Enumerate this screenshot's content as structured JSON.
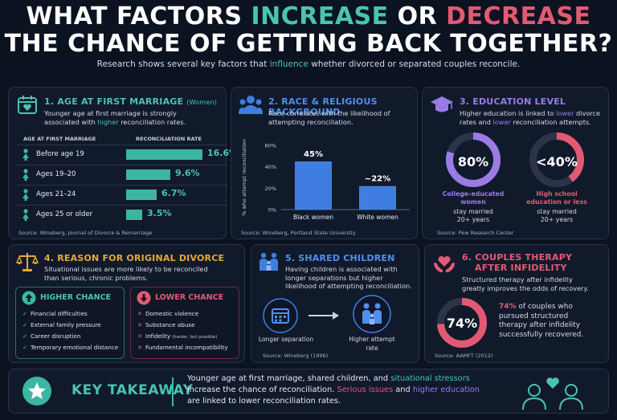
{
  "header": {
    "title_a": "WHAT FACTORS ",
    "title_b": "INCREASE",
    "title_c": " OR ",
    "title_d": "DECREASE",
    "title_line2": "THE CHANCE OF GETTING BACK TOGETHER?",
    "subtitle_a": "Research shows several key factors that ",
    "subtitle_b": "influence",
    "subtitle_c": " whether divorced or separated couples reconcile."
  },
  "colors": {
    "teal": "#49c4b0",
    "red": "#e25a72",
    "blue": "#3f7ee0",
    "purple": "#9b7be6",
    "orange": "#e7a73a",
    "background": "#0b1220"
  },
  "panel1": {
    "title": "1. AGE AT FIRST MARRIAGE",
    "title_note": "(Women)",
    "text_a": "Younger age at first marriage is strongly",
    "text_b": "associated with ",
    "text_c": "higher",
    "text_d": " reconciliation rates.",
    "col_age": "AGE AT FIRST MARRIAGE",
    "col_rate": "RECONCILIATION RATE",
    "rows": [
      {
        "label": "Before age 19",
        "value": "16.6%",
        "num": 16.6
      },
      {
        "label": "Ages 19–20",
        "value": "9.6%",
        "num": 9.6
      },
      {
        "label": "Ages 21–24",
        "value": "6.7%",
        "num": 6.7
      },
      {
        "label": "Ages 25 or older",
        "value": "3.5%",
        "num": 3.5
      }
    ],
    "source": "Source: Wineberg, Journal of Divorce & Remarriage",
    "icon": "calendar-heart-icon"
  },
  "panel2": {
    "title": "2. RACE & RELIGIOUS BACKGROUND",
    "text_a": "Race correlates with the likelihood of",
    "text_b": "attempting reconciliation.",
    "source": "Source: Wineberg, Portland State University",
    "icon": "people-group-icon"
  },
  "chart_data": {
    "type": "bar",
    "categories": [
      "Black women",
      "White women"
    ],
    "values": [
      45,
      22
    ],
    "data_labels": [
      "45%",
      "~22%"
    ],
    "ylabel": "% who attempt reconciliation",
    "ylim": [
      0,
      60
    ],
    "yticks": [
      "0%",
      "20%",
      "40%",
      "60%"
    ],
    "grid": false
  },
  "panel3": {
    "title": "3. EDUCATION LEVEL",
    "text_a": "Higher education is linked to ",
    "text_b": "lower",
    "text_c": " divorce",
    "text_d": "rates and ",
    "text_e": "lower",
    "text_f": " reconciliation attempts.",
    "donut1": {
      "value": "80%",
      "fraction": 0.8,
      "label_a": "College-educated",
      "label_b": "women",
      "stat_a": "stay married",
      "stat_b": "20+ years"
    },
    "donut2": {
      "value": "<40%",
      "fraction": 0.4,
      "label_a": "High school",
      "label_b": "education or less",
      "stat_a": "stay married",
      "stat_b": "20+ years"
    },
    "source": "Source: Pew Research Center",
    "icon": "graduation-cap-icon"
  },
  "panel4": {
    "title": "4. REASON FOR ORIGINAL DIVORCE",
    "text_a": "Situational issues are more likely to be reconciled",
    "text_b": "than serious, chronic problems.",
    "higher_title": "HIGHER CHANCE",
    "higher_items": [
      "Financial difficulties",
      "External family pressure",
      "Career disruption",
      "Temporary emotional distance"
    ],
    "lower_title": "LOWER CHANCE",
    "lower_items": [
      "Domestic violence",
      "Substance abuse",
      "Infidelity",
      "Fundamental incompatibility"
    ],
    "lower_note": "(harder, but possible)",
    "icon": "scales-icon"
  },
  "panel5": {
    "title": "5. SHARED CHILDREN",
    "text_a": "Having children is associated with",
    "text_b": "longer separations but higher",
    "text_c": "likelihood of attempting reconciliation.",
    "left_label": "Longer separation",
    "right_label_a": "Higher attempt",
    "right_label_b": "rate",
    "source": "Source: Wineberg (1996)",
    "icon": "family-icon"
  },
  "panel6": {
    "title_a": "6. COUPLES THERAPY",
    "title_b": "AFTER INFIDELITY",
    "text_a": "Structured therapy after infidelity",
    "text_b": "greatly improves the odds of recovery.",
    "donut": {
      "value": "74%",
      "fraction": 0.74
    },
    "stat_a": "74%",
    "stat_b": " of couples who",
    "stat_c": "pursued structured",
    "stat_d": "therapy after infidelity",
    "stat_e": "successfully recovered.",
    "source": "Source: AAMFT (2012)",
    "icon": "heart-hands-icon"
  },
  "takeaway": {
    "title": "KEY TAKEAWAY",
    "l1_a": "Younger age at first marriage, shared children, and ",
    "l1_b": "situational stressors",
    "l2_a": "increase the chance of reconciliation. ",
    "l2_b": "Serious issues",
    "l2_c": " and ",
    "l2_d": "higher education",
    "l3": "are linked to lower reconciliation rates.",
    "icon": "star-icon",
    "illustration": "couple-heart-icon"
  }
}
